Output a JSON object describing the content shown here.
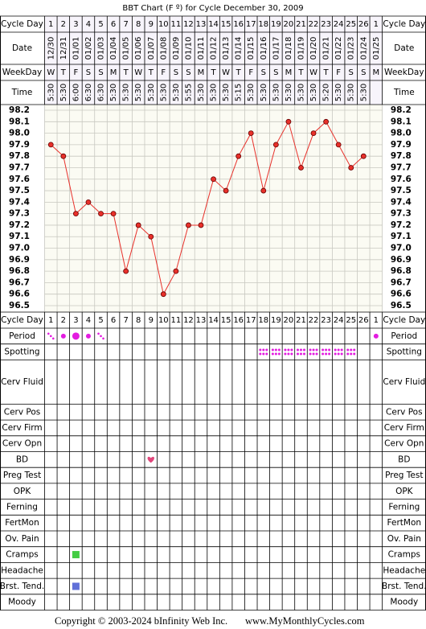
{
  "chart_data": {
    "type": "line",
    "title": "BBT Chart (F º) for Cycle December 30, 2009",
    "row_labels": {
      "cycle_day": "Cycle Day",
      "date": "Date",
      "weekday": "WeekDay",
      "time": "Time"
    },
    "categories": [
      1,
      2,
      3,
      4,
      5,
      6,
      7,
      8,
      9,
      10,
      11,
      12,
      13,
      14,
      15,
      16,
      17,
      18,
      19,
      20,
      21,
      22,
      23,
      24,
      25,
      26,
      1
    ],
    "dates": [
      "12/30",
      "12/31",
      "01/01",
      "01/02",
      "01/03",
      "01/04",
      "01/05",
      "01/06",
      "01/07",
      "01/08",
      "01/09",
      "01/10",
      "01/11",
      "01/12",
      "01/13",
      "01/14",
      "01/15",
      "01/16",
      "01/17",
      "01/18",
      "01/19",
      "01/20",
      "01/21",
      "01/22",
      "01/23",
      "01/24",
      "01/25"
    ],
    "weekdays": [
      "W",
      "T",
      "F",
      "S",
      "S",
      "M",
      "T",
      "W",
      "T",
      "F",
      "S",
      "S",
      "M",
      "T",
      "W",
      "T",
      "F",
      "S",
      "S",
      "M",
      "T",
      "W",
      "T",
      "F",
      "S",
      "S",
      "M"
    ],
    "times": [
      "5:30",
      "5:30",
      "6:00",
      "6:30",
      "6:30",
      "5:30",
      "5:30",
      "5:30",
      "5:30",
      "5:30",
      "5:30",
      "5:55",
      "5:30",
      "5:30",
      "5:30",
      "5:15",
      "5:30",
      "5:30",
      "5:30",
      "5:30",
      "5:30",
      "5:30",
      "5:20",
      "5:30",
      "5:30",
      "5:30",
      null
    ],
    "values": [
      97.9,
      97.8,
      97.3,
      97.4,
      97.3,
      97.3,
      96.8,
      97.2,
      97.1,
      96.6,
      96.8,
      97.2,
      97.2,
      97.6,
      97.5,
      97.8,
      98.0,
      97.5,
      97.9,
      98.1,
      97.7,
      98.0,
      98.1,
      97.9,
      97.7,
      97.8,
      null
    ],
    "color": "#e8302a",
    "ylim": [
      96.5,
      98.2
    ],
    "yticks": [
      98.2,
      98.1,
      {
        "value": 98,
        "label": "98.0"
      },
      97.9,
      97.8,
      97.7,
      97.6,
      97.5,
      97.4,
      97.3,
      97.2,
      97.1,
      {
        "value": 97,
        "label": "97.0"
      },
      96.9,
      96.8,
      96.7,
      96.6,
      96.5
    ],
    "grid": true,
    "tracker": [
      {
        "label": "Period",
        "marks": [
          {
            "column": 0,
            "level": 1
          },
          {
            "column": 1,
            "level": 2
          },
          {
            "column": 2,
            "level": 3
          },
          {
            "column": 3,
            "level": 2
          },
          {
            "column": 4,
            "level": 1
          },
          {
            "column": 26,
            "level": 2
          }
        ]
      },
      {
        "label": "Spotting",
        "marks": [
          {
            "column": 17,
            "level": 1
          },
          {
            "column": 18,
            "level": 1
          },
          {
            "column": 19,
            "level": 1
          },
          {
            "column": 20,
            "level": 1
          },
          {
            "column": 21,
            "level": 1
          },
          {
            "column": 22,
            "level": 1
          },
          {
            "column": 23,
            "level": 1
          },
          {
            "column": 24,
            "level": 1
          }
        ]
      },
      {
        "label": "Cerv Fluid",
        "marks": []
      },
      {
        "label": "Cerv Pos",
        "marks": []
      },
      {
        "label": "Cerv Firm",
        "marks": []
      },
      {
        "label": "Cerv Opn",
        "marks": []
      },
      {
        "label": "BD",
        "marks": [
          {
            "column": 8,
            "level": 1
          }
        ]
      },
      {
        "label": "Preg Test",
        "marks": []
      },
      {
        "label": "OPK",
        "marks": []
      },
      {
        "label": "Ferning",
        "marks": []
      },
      {
        "label": "FertMon",
        "marks": []
      },
      {
        "label": "Ov. Pain",
        "marks": []
      },
      {
        "label": "Cramps",
        "marks": [
          {
            "column": 2,
            "level": 1
          }
        ]
      },
      {
        "label": "Headache",
        "marks": []
      },
      {
        "label": "Brst. Tend.",
        "marks": [
          {
            "column": 2,
            "level": 1
          }
        ]
      },
      {
        "label": "Moody",
        "marks": []
      }
    ]
  },
  "footer": {
    "copyright": "Copyright © 2003-2024 bInfinity Web Inc.",
    "site": "www.MyMonthlyCycles.com"
  }
}
